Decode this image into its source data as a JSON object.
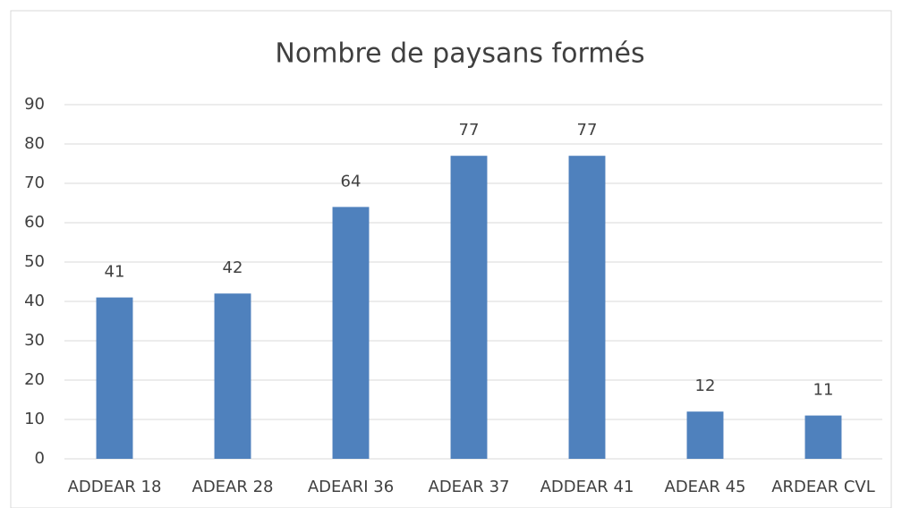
{
  "chart_data": {
    "type": "bar",
    "title": "Nombre de paysans formés",
    "categories": [
      "ADDEAR 18",
      "ADEAR 28",
      "ADEARI 36",
      "ADEAR 37",
      "ADDEAR 41",
      "ADEAR 45",
      "ARDEAR CVL"
    ],
    "values": [
      41,
      42,
      64,
      77,
      77,
      12,
      11
    ],
    "color": "#4f81bd",
    "ylim": [
      0,
      90
    ],
    "yticks": [
      0,
      10,
      20,
      30,
      40,
      50,
      60,
      70,
      80,
      90
    ],
    "grid": true
  }
}
